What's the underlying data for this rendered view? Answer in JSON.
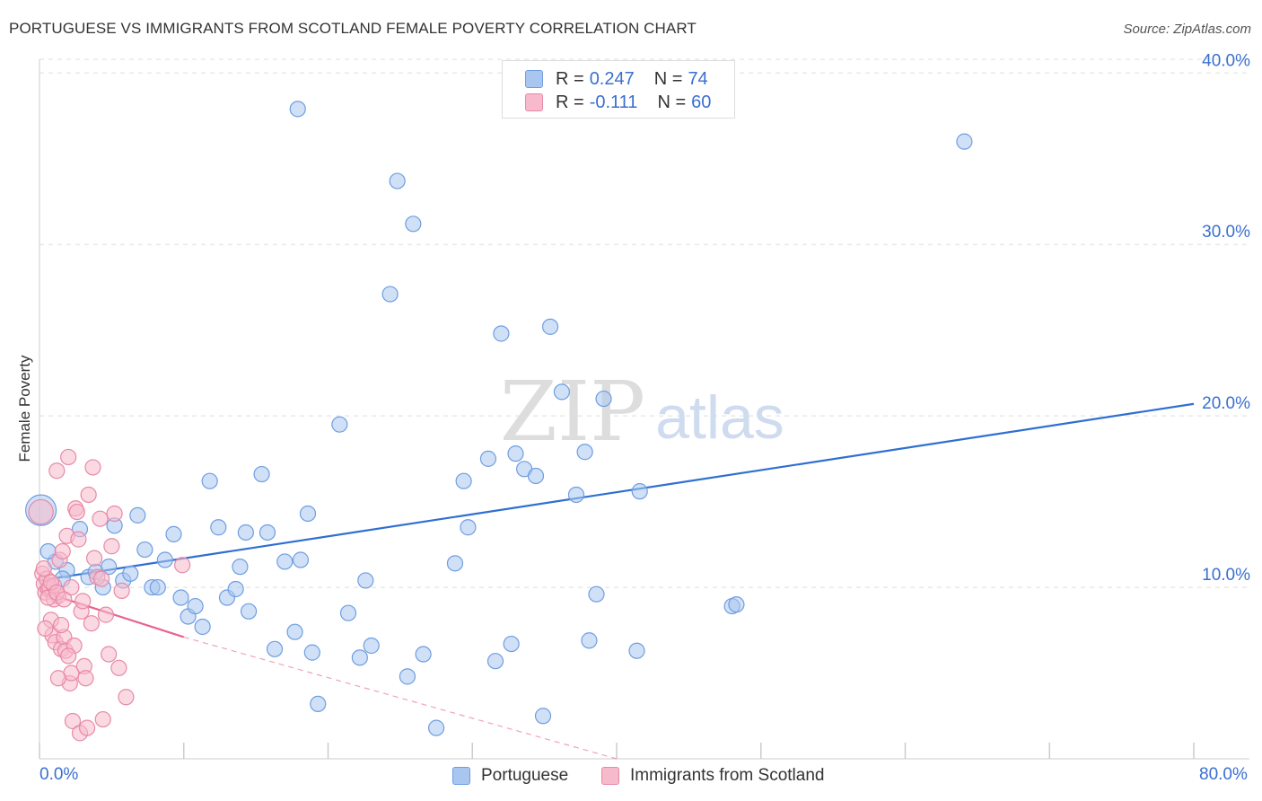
{
  "header": {
    "title": "PORTUGUESE VS IMMIGRANTS FROM SCOTLAND FEMALE POVERTY CORRELATION CHART",
    "source": "Source: ZipAtlas.com"
  },
  "watermark": {
    "zip": "ZIP",
    "atlas": "atlas"
  },
  "legend": {
    "rows": [
      {
        "r_label": "R =",
        "r_value": "0.247",
        "n_label": "N =",
        "n_value": "74",
        "color": "#a9c6f0",
        "border": "#6e9ee0"
      },
      {
        "r_label": "R =",
        "r_value": "-0.111",
        "n_label": "N =",
        "n_value": "60",
        "color": "#f7b9cc",
        "border": "#e889a6"
      }
    ]
  },
  "bottom_legend": {
    "items": [
      {
        "label": "Portuguese",
        "color": "#a9c6f0",
        "border": "#6e9ee0"
      },
      {
        "label": "Immigrants from Scotland",
        "color": "#f7b9cc",
        "border": "#e889a6"
      }
    ]
  },
  "chart_data": {
    "type": "scatter",
    "title": "PORTUGUESE VS IMMIGRANTS FROM SCOTLAND FEMALE POVERTY CORRELATION CHART",
    "xlabel": "",
    "ylabel": "Female Poverty",
    "xlim": [
      0,
      80
    ],
    "ylim": [
      0,
      40.8
    ],
    "x_tick_labels": {
      "0": "0.0%",
      "80": "80.0%"
    },
    "y_ticks": [
      10,
      20,
      30,
      40
    ],
    "y_tick_labels": [
      "10.0%",
      "20.0%",
      "30.0%",
      "40.0%"
    ],
    "grid": true,
    "legend_position": "top-center",
    "series": [
      {
        "name": "Portuguese",
        "color": "#a9c6f0",
        "edge": "#6e9ee0",
        "trend": {
          "x": [
            0,
            80
          ],
          "y": [
            10.4,
            20.7
          ],
          "color": "#2f6fd1"
        },
        "points": [
          {
            "x": 0.1,
            "y": 14.5,
            "s": 2
          },
          {
            "x": 1.1,
            "y": 11.5
          },
          {
            "x": 1.9,
            "y": 11.0
          },
          {
            "x": 1.6,
            "y": 10.5
          },
          {
            "x": 2.8,
            "y": 13.4
          },
          {
            "x": 3.4,
            "y": 10.6
          },
          {
            "x": 3.9,
            "y": 10.9
          },
          {
            "x": 4.4,
            "y": 10.0
          },
          {
            "x": 4.8,
            "y": 11.2
          },
          {
            "x": 5.2,
            "y": 13.6
          },
          {
            "x": 5.8,
            "y": 10.4
          },
          {
            "x": 6.3,
            "y": 10.8
          },
          {
            "x": 6.8,
            "y": 14.2
          },
          {
            "x": 7.3,
            "y": 12.2
          },
          {
            "x": 7.8,
            "y": 10.0
          },
          {
            "x": 8.2,
            "y": 10.0
          },
          {
            "x": 8.7,
            "y": 11.6
          },
          {
            "x": 9.3,
            "y": 13.1
          },
          {
            "x": 9.8,
            "y": 9.4
          },
          {
            "x": 10.3,
            "y": 8.3
          },
          {
            "x": 10.8,
            "y": 8.9
          },
          {
            "x": 11.3,
            "y": 7.7
          },
          {
            "x": 11.8,
            "y": 16.2
          },
          {
            "x": 12.4,
            "y": 13.5
          },
          {
            "x": 13.0,
            "y": 9.4
          },
          {
            "x": 13.9,
            "y": 11.2
          },
          {
            "x": 13.6,
            "y": 9.9
          },
          {
            "x": 14.3,
            "y": 13.2
          },
          {
            "x": 14.5,
            "y": 8.6
          },
          {
            "x": 15.4,
            "y": 16.6
          },
          {
            "x": 15.8,
            "y": 13.2
          },
          {
            "x": 16.3,
            "y": 6.4
          },
          {
            "x": 17.0,
            "y": 11.5
          },
          {
            "x": 17.7,
            "y": 7.4
          },
          {
            "x": 18.1,
            "y": 11.6
          },
          {
            "x": 18.6,
            "y": 14.3
          },
          {
            "x": 19.3,
            "y": 3.2
          },
          {
            "x": 20.8,
            "y": 19.5
          },
          {
            "x": 18.9,
            "y": 6.2
          },
          {
            "x": 21.4,
            "y": 8.5
          },
          {
            "x": 22.2,
            "y": 5.9
          },
          {
            "x": 22.6,
            "y": 10.4
          },
          {
            "x": 23.0,
            "y": 6.6
          },
          {
            "x": 24.3,
            "y": 27.1
          },
          {
            "x": 24.8,
            "y": 33.7
          },
          {
            "x": 25.5,
            "y": 4.8
          },
          {
            "x": 25.9,
            "y": 31.2
          },
          {
            "x": 26.6,
            "y": 6.1
          },
          {
            "x": 27.5,
            "y": 1.8
          },
          {
            "x": 28.8,
            "y": 11.4
          },
          {
            "x": 29.4,
            "y": 16.2
          },
          {
            "x": 29.7,
            "y": 13.5
          },
          {
            "x": 31.1,
            "y": 17.5
          },
          {
            "x": 31.6,
            "y": 5.7
          },
          {
            "x": 32.0,
            "y": 24.8
          },
          {
            "x": 32.7,
            "y": 6.7
          },
          {
            "x": 33.0,
            "y": 17.8
          },
          {
            "x": 33.6,
            "y": 16.9
          },
          {
            "x": 34.4,
            "y": 16.5
          },
          {
            "x": 34.9,
            "y": 2.5
          },
          {
            "x": 35.4,
            "y": 25.2
          },
          {
            "x": 36.2,
            "y": 21.4
          },
          {
            "x": 37.2,
            "y": 15.4
          },
          {
            "x": 37.8,
            "y": 17.9
          },
          {
            "x": 38.1,
            "y": 6.9
          },
          {
            "x": 38.6,
            "y": 9.6
          },
          {
            "x": 39.1,
            "y": 21.0
          },
          {
            "x": 41.4,
            "y": 6.3
          },
          {
            "x": 41.6,
            "y": 15.6
          },
          {
            "x": 48.0,
            "y": 8.9
          },
          {
            "x": 48.3,
            "y": 9.0
          },
          {
            "x": 64.1,
            "y": 36.0
          },
          {
            "x": 17.9,
            "y": 37.9
          },
          {
            "x": 0.6,
            "y": 12.1
          }
        ]
      },
      {
        "name": "Immigrants from Scotland",
        "color": "#f7b9cc",
        "edge": "#e889a6",
        "trend": {
          "x": [
            0,
            10
          ],
          "y": [
            9.8,
            7.1
          ],
          "dash_to": [
            40,
            0
          ],
          "color": "#e8648c"
        },
        "points": [
          {
            "x": 0.1,
            "y": 14.4,
            "s": 1.6
          },
          {
            "x": 0.2,
            "y": 10.8
          },
          {
            "x": 0.3,
            "y": 10.2
          },
          {
            "x": 0.4,
            "y": 9.7
          },
          {
            "x": 0.5,
            "y": 10.5
          },
          {
            "x": 0.6,
            "y": 9.9
          },
          {
            "x": 0.7,
            "y": 10.0
          },
          {
            "x": 0.8,
            "y": 8.1
          },
          {
            "x": 0.9,
            "y": 7.2
          },
          {
            "x": 1.0,
            "y": 9.3
          },
          {
            "x": 1.1,
            "y": 6.8
          },
          {
            "x": 1.2,
            "y": 16.8
          },
          {
            "x": 1.3,
            "y": 9.5
          },
          {
            "x": 1.4,
            "y": 11.6
          },
          {
            "x": 1.5,
            "y": 6.4
          },
          {
            "x": 1.6,
            "y": 12.1
          },
          {
            "x": 1.7,
            "y": 7.1
          },
          {
            "x": 1.8,
            "y": 6.3
          },
          {
            "x": 1.9,
            "y": 13.0
          },
          {
            "x": 2.0,
            "y": 17.6
          },
          {
            "x": 2.1,
            "y": 4.4
          },
          {
            "x": 2.2,
            "y": 5.0
          },
          {
            "x": 2.3,
            "y": 2.2
          },
          {
            "x": 2.4,
            "y": 6.6
          },
          {
            "x": 2.5,
            "y": 14.6
          },
          {
            "x": 2.6,
            "y": 14.4
          },
          {
            "x": 2.7,
            "y": 12.8
          },
          {
            "x": 2.8,
            "y": 1.5
          },
          {
            "x": 2.9,
            "y": 8.6
          },
          {
            "x": 3.0,
            "y": 9.2
          },
          {
            "x": 3.1,
            "y": 5.4
          },
          {
            "x": 3.2,
            "y": 4.7
          },
          {
            "x": 3.3,
            "y": 1.8
          },
          {
            "x": 3.4,
            "y": 15.4
          },
          {
            "x": 3.6,
            "y": 7.9
          },
          {
            "x": 3.7,
            "y": 17.0
          },
          {
            "x": 3.8,
            "y": 11.7
          },
          {
            "x": 4.0,
            "y": 10.6
          },
          {
            "x": 4.2,
            "y": 14.0
          },
          {
            "x": 4.3,
            "y": 10.5
          },
          {
            "x": 4.4,
            "y": 2.3
          },
          {
            "x": 4.6,
            "y": 8.4
          },
          {
            "x": 4.8,
            "y": 6.1
          },
          {
            "x": 5.0,
            "y": 12.4
          },
          {
            "x": 5.2,
            "y": 14.3
          },
          {
            "x": 5.5,
            "y": 5.3
          },
          {
            "x": 5.7,
            "y": 9.8
          },
          {
            "x": 6.0,
            "y": 3.6
          },
          {
            "x": 0.6,
            "y": 9.4
          },
          {
            "x": 1.0,
            "y": 10.1
          },
          {
            "x": 0.8,
            "y": 10.3
          },
          {
            "x": 1.2,
            "y": 9.7
          },
          {
            "x": 1.5,
            "y": 7.8
          },
          {
            "x": 2.0,
            "y": 6.0
          },
          {
            "x": 0.4,
            "y": 7.6
          },
          {
            "x": 9.9,
            "y": 11.3
          },
          {
            "x": 1.3,
            "y": 4.7
          },
          {
            "x": 0.3,
            "y": 11.1
          },
          {
            "x": 2.2,
            "y": 10.0
          },
          {
            "x": 1.7,
            "y": 9.3
          }
        ]
      }
    ]
  }
}
